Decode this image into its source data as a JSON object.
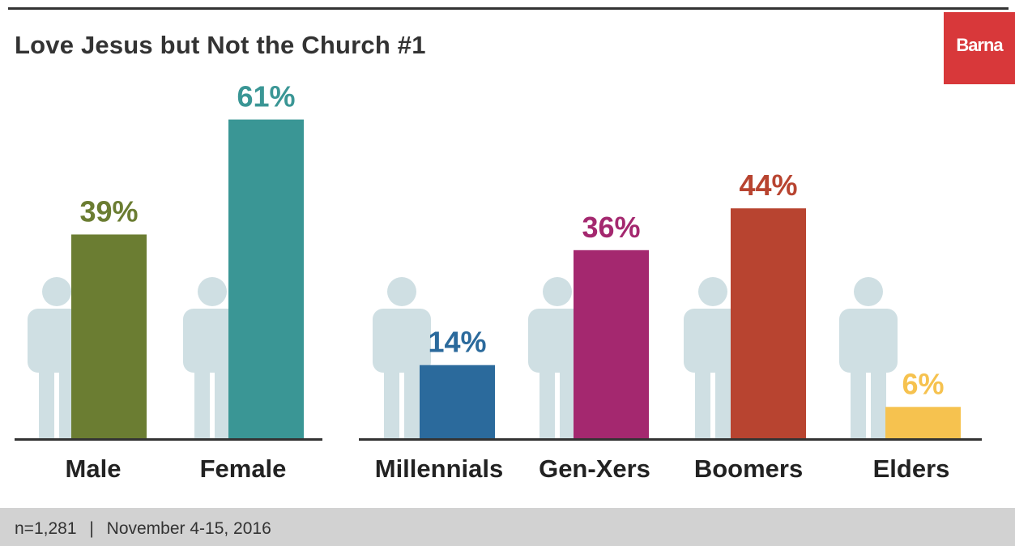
{
  "title": "Love Jesus but Not the Church #1",
  "logo": "Barna",
  "footer": {
    "sample": "n=1,281",
    "separator": "|",
    "dates": "November 4-15, 2016"
  },
  "colors": {
    "figure": "#cfdfe3",
    "axis": "#333333",
    "logo": "#d8383a",
    "footer": "#d2d2d2"
  },
  "chart_data": {
    "type": "bar",
    "title": "Love Jesus but Not the Church #1",
    "unit": "%",
    "groups": [
      {
        "name": "",
        "categories": [
          "Male",
          "Female"
        ],
        "values": [
          39,
          61
        ],
        "colors": [
          "#6b7d32",
          "#3a9695"
        ]
      },
      {
        "name": "",
        "categories": [
          "Millennials",
          "Gen-Xers",
          "Boomers",
          "Elders"
        ],
        "values": [
          14,
          36,
          44,
          6
        ],
        "colors": [
          "#2b6a9c",
          "#a4286f",
          "#b84430",
          "#f6c24f"
        ]
      }
    ]
  }
}
